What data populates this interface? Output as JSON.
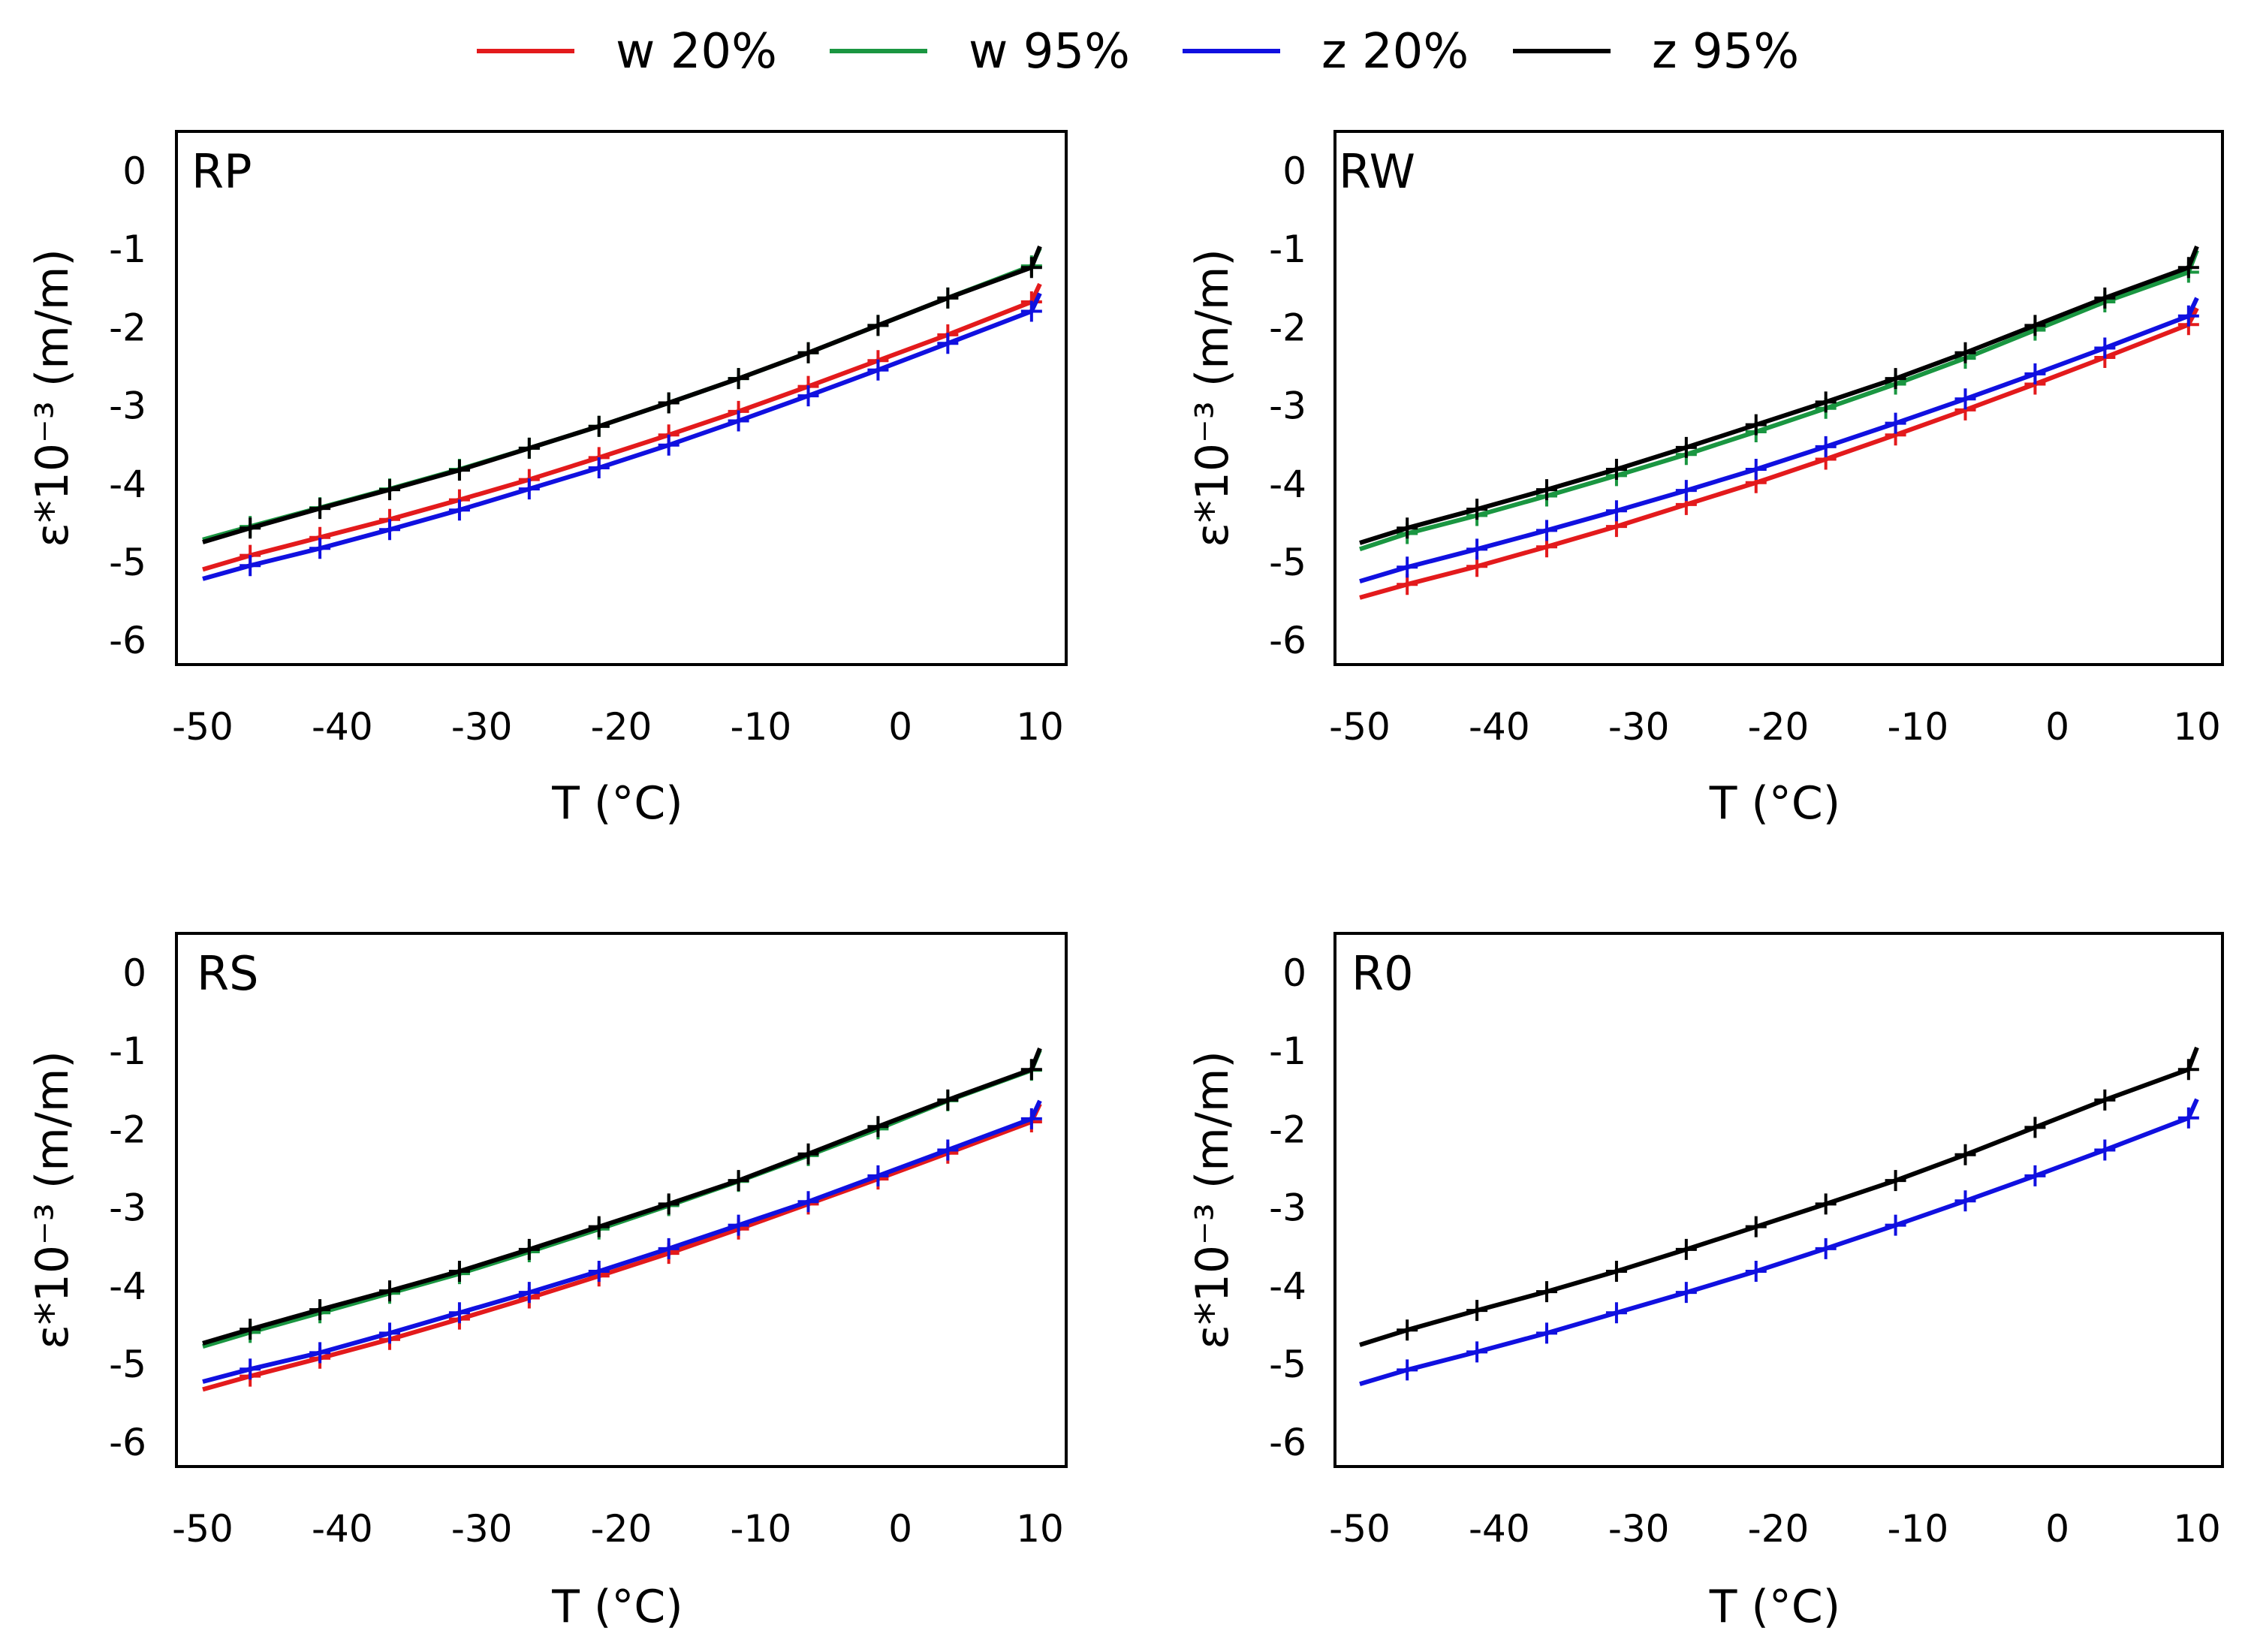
{
  "legend": [
    {
      "label": "w 20%",
      "color": "#e31a1c"
    },
    {
      "label": "w 95%",
      "color": "#1a9641"
    },
    {
      "label": "z 20%",
      "color": "#1010e0"
    },
    {
      "label": "z 95%",
      "color": "#000000"
    }
  ],
  "chart_data": [
    {
      "type": "line",
      "panel_label": "RP",
      "xlabel": "T (°C)",
      "ylabel": "ε*10⁻³ (m/m)",
      "xlim": [
        -50,
        10
      ],
      "ylim": [
        -6.5,
        0.5
      ],
      "xticks": [
        "-50",
        "-40",
        "-30",
        "-20",
        "-10",
        "0",
        "10"
      ],
      "yticks": [
        "0",
        "-1",
        "-2",
        "-3",
        "-4",
        "-5",
        "-6"
      ],
      "x": [
        -50,
        -46.6,
        -41.6,
        -36.6,
        -31.6,
        -26.6,
        -21.6,
        -16.6,
        -11.6,
        -6.6,
        -1.6,
        3.4,
        9.4,
        10
      ],
      "series": [
        {
          "name": "w 20%",
          "values": [
            -5.1,
            -4.92,
            -4.69,
            -4.46,
            -4.21,
            -3.95,
            -3.67,
            -3.38,
            -3.08,
            -2.76,
            -2.43,
            -2.1,
            -1.68,
            -1.45
          ]
        },
        {
          "name": "w 95%",
          "values": [
            -4.72,
            -4.55,
            -4.31,
            -4.07,
            -3.82,
            -3.55,
            -3.27,
            -2.97,
            -2.66,
            -2.33,
            -1.98,
            -1.63,
            -1.22,
            -0.99
          ]
        },
        {
          "name": "z 20%",
          "values": [
            -5.22,
            -5.05,
            -4.83,
            -4.59,
            -4.34,
            -4.07,
            -3.8,
            -3.51,
            -3.2,
            -2.88,
            -2.55,
            -2.21,
            -1.8,
            -1.57
          ]
        },
        {
          "name": "z 95%",
          "values": [
            -4.75,
            -4.57,
            -4.32,
            -4.08,
            -3.83,
            -3.55,
            -3.27,
            -2.97,
            -2.66,
            -2.33,
            -1.98,
            -1.63,
            -1.24,
            -0.97
          ]
        }
      ]
    },
    {
      "type": "line",
      "panel_label": "RW",
      "xlabel": "T (°C)",
      "ylabel": "ε*10⁻³ (m/m)",
      "xlim": [
        -50,
        10
      ],
      "ylim": [
        -6.5,
        0.5
      ],
      "xticks": [
        "-50",
        "-40",
        "-30",
        "-20",
        "-10",
        "0",
        "10"
      ],
      "yticks": [
        "0",
        "-1",
        "-2",
        "-3",
        "-4",
        "-5",
        "-6"
      ],
      "x": [
        -50,
        -46.6,
        -41.6,
        -36.6,
        -31.6,
        -26.6,
        -21.6,
        -16.6,
        -11.6,
        -6.6,
        -1.6,
        3.4,
        9.4,
        10
      ],
      "series": [
        {
          "name": "w 20%",
          "values": [
            -5.46,
            -5.29,
            -5.06,
            -4.81,
            -4.55,
            -4.27,
            -3.99,
            -3.69,
            -3.38,
            -3.06,
            -2.73,
            -2.39,
            -1.97,
            -1.76
          ]
        },
        {
          "name": "w 95%",
          "values": [
            -4.84,
            -4.64,
            -4.41,
            -4.16,
            -3.9,
            -3.63,
            -3.34,
            -3.04,
            -2.73,
            -2.4,
            -2.04,
            -1.68,
            -1.3,
            -1.02
          ]
        },
        {
          "name": "z 20%",
          "values": [
            -5.25,
            -5.07,
            -4.84,
            -4.6,
            -4.35,
            -4.09,
            -3.82,
            -3.53,
            -3.23,
            -2.92,
            -2.6,
            -2.27,
            -1.86,
            -1.63
          ]
        },
        {
          "name": "z 95%",
          "values": [
            -4.76,
            -4.57,
            -4.33,
            -4.08,
            -3.82,
            -3.54,
            -3.25,
            -2.96,
            -2.66,
            -2.33,
            -1.98,
            -1.63,
            -1.24,
            -0.97
          ]
        }
      ]
    },
    {
      "type": "line",
      "panel_label": "RS",
      "xlabel": "T (°C)",
      "ylabel": "ε*10⁻³ (m/m)",
      "xlim": [
        -50,
        10
      ],
      "ylim": [
        -6.5,
        0.5
      ],
      "xticks": [
        "-50",
        "-40",
        "-30",
        "-20",
        "-10",
        "0",
        "10"
      ],
      "yticks": [
        "0",
        "-1",
        "-2",
        "-3",
        "-4",
        "-5",
        "-6"
      ],
      "x": [
        -50,
        -46.6,
        -41.6,
        -36.6,
        -31.6,
        -26.6,
        -21.6,
        -16.6,
        -11.6,
        -6.6,
        -1.6,
        3.4,
        9.4,
        10
      ],
      "series": [
        {
          "name": "w 20%",
          "values": [
            -5.33,
            -5.16,
            -4.93,
            -4.69,
            -4.43,
            -4.16,
            -3.88,
            -3.59,
            -3.28,
            -2.96,
            -2.64,
            -2.31,
            -1.91,
            -1.68
          ]
        },
        {
          "name": "w 95%",
          "values": [
            -4.78,
            -4.6,
            -4.35,
            -4.1,
            -3.85,
            -3.57,
            -3.28,
            -2.98,
            -2.67,
            -2.34,
            -2.0,
            -1.64,
            -1.25,
            -0.99
          ]
        },
        {
          "name": "z 20%",
          "values": [
            -5.23,
            -5.07,
            -4.86,
            -4.61,
            -4.35,
            -4.09,
            -3.82,
            -3.53,
            -3.23,
            -2.93,
            -2.6,
            -2.27,
            -1.87,
            -1.64
          ]
        },
        {
          "name": "z 95%",
          "values": [
            -4.74,
            -4.56,
            -4.31,
            -4.07,
            -3.82,
            -3.54,
            -3.25,
            -2.96,
            -2.66,
            -2.32,
            -1.97,
            -1.63,
            -1.24,
            -0.97
          ]
        }
      ]
    },
    {
      "type": "line",
      "panel_label": "R0",
      "xlabel": "T (°C)",
      "ylabel": "ε*10⁻³ (m/m)",
      "xlim": [
        -50,
        10
      ],
      "ylim": [
        -6.5,
        0.5
      ],
      "xticks": [
        "-50",
        "-40",
        "-30",
        "-20",
        "-10",
        "0",
        "10"
      ],
      "yticks": [
        "0",
        "-1",
        "-2",
        "-3",
        "-4",
        "-5",
        "-6"
      ],
      "x": [
        -50,
        -46.6,
        -41.6,
        -36.6,
        -31.6,
        -26.6,
        -21.6,
        -16.6,
        -11.6,
        -6.6,
        -1.6,
        3.4,
        9.4,
        10
      ],
      "series": [
        {
          "name": "z 20%",
          "values": [
            -5.26,
            -5.08,
            -4.85,
            -4.61,
            -4.35,
            -4.09,
            -3.82,
            -3.53,
            -3.23,
            -2.92,
            -2.6,
            -2.27,
            -1.86,
            -1.62
          ]
        },
        {
          "name": "z 95%",
          "values": [
            -4.76,
            -4.57,
            -4.32,
            -4.08,
            -3.82,
            -3.54,
            -3.25,
            -2.96,
            -2.66,
            -2.33,
            -1.98,
            -1.63,
            -1.24,
            -0.96
          ]
        }
      ]
    }
  ]
}
